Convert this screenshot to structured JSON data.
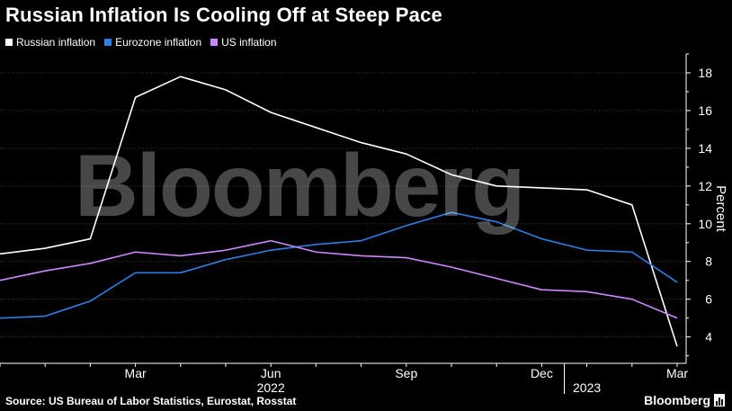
{
  "header": {
    "title": "Russian Inflation Is Cooling Off at Steep Pace"
  },
  "legend": [
    {
      "label": "Russian inflation",
      "color": "#ffffff"
    },
    {
      "label": "Eurozone inflation",
      "color": "#2f7ee6"
    },
    {
      "label": "US inflation",
      "color": "#cc88ff"
    }
  ],
  "footer": {
    "source": "Source: US Bureau of Labor Statistics, Eurostat, Rosstat",
    "brand": "Bloomberg"
  },
  "watermark": "Bloomberg",
  "chart_data": {
    "type": "line",
    "x": [
      "2021-12",
      "2022-01",
      "2022-02",
      "2022-03",
      "2022-04",
      "2022-05",
      "2022-06",
      "2022-07",
      "2022-08",
      "2022-09",
      "2022-10",
      "2022-11",
      "2022-12",
      "2023-01",
      "2023-02",
      "2023-03"
    ],
    "series": [
      {
        "name": "Russian inflation",
        "color": "#ffffff",
        "values": [
          8.4,
          8.7,
          9.2,
          16.7,
          17.8,
          17.1,
          15.9,
          15.1,
          14.3,
          13.7,
          12.6,
          12.0,
          11.9,
          11.8,
          11.0,
          3.5
        ]
      },
      {
        "name": "Eurozone inflation",
        "color": "#2f7ee6",
        "values": [
          5.0,
          5.1,
          5.9,
          7.4,
          7.4,
          8.1,
          8.6,
          8.9,
          9.1,
          9.9,
          10.6,
          10.1,
          9.2,
          8.6,
          8.5,
          6.9
        ]
      },
      {
        "name": "US inflation",
        "color": "#cc88ff",
        "values": [
          7.0,
          7.5,
          7.9,
          8.5,
          8.3,
          8.6,
          9.1,
          8.5,
          8.3,
          8.2,
          7.7,
          7.1,
          6.5,
          6.4,
          6.0,
          5.0
        ]
      }
    ],
    "xticks": [
      {
        "label": "Mar",
        "x": "2022-03"
      },
      {
        "label": "Jun",
        "x": "2022-06"
      },
      {
        "label": "Sep",
        "x": "2022-09"
      },
      {
        "label": "Dec",
        "x": "2022-12"
      },
      {
        "label": "Mar",
        "x": "2023-03"
      }
    ],
    "year_labels": [
      {
        "label": "2022",
        "x": "2022-06"
      },
      {
        "label": "2023",
        "x": "2023-01"
      }
    ],
    "yticks": [
      4,
      6,
      8,
      10,
      12,
      14,
      16,
      18
    ],
    "ylim": [
      2.6,
      19.0
    ],
    "ylabel": "Percent",
    "y_axis_side": "right",
    "grid": true
  }
}
